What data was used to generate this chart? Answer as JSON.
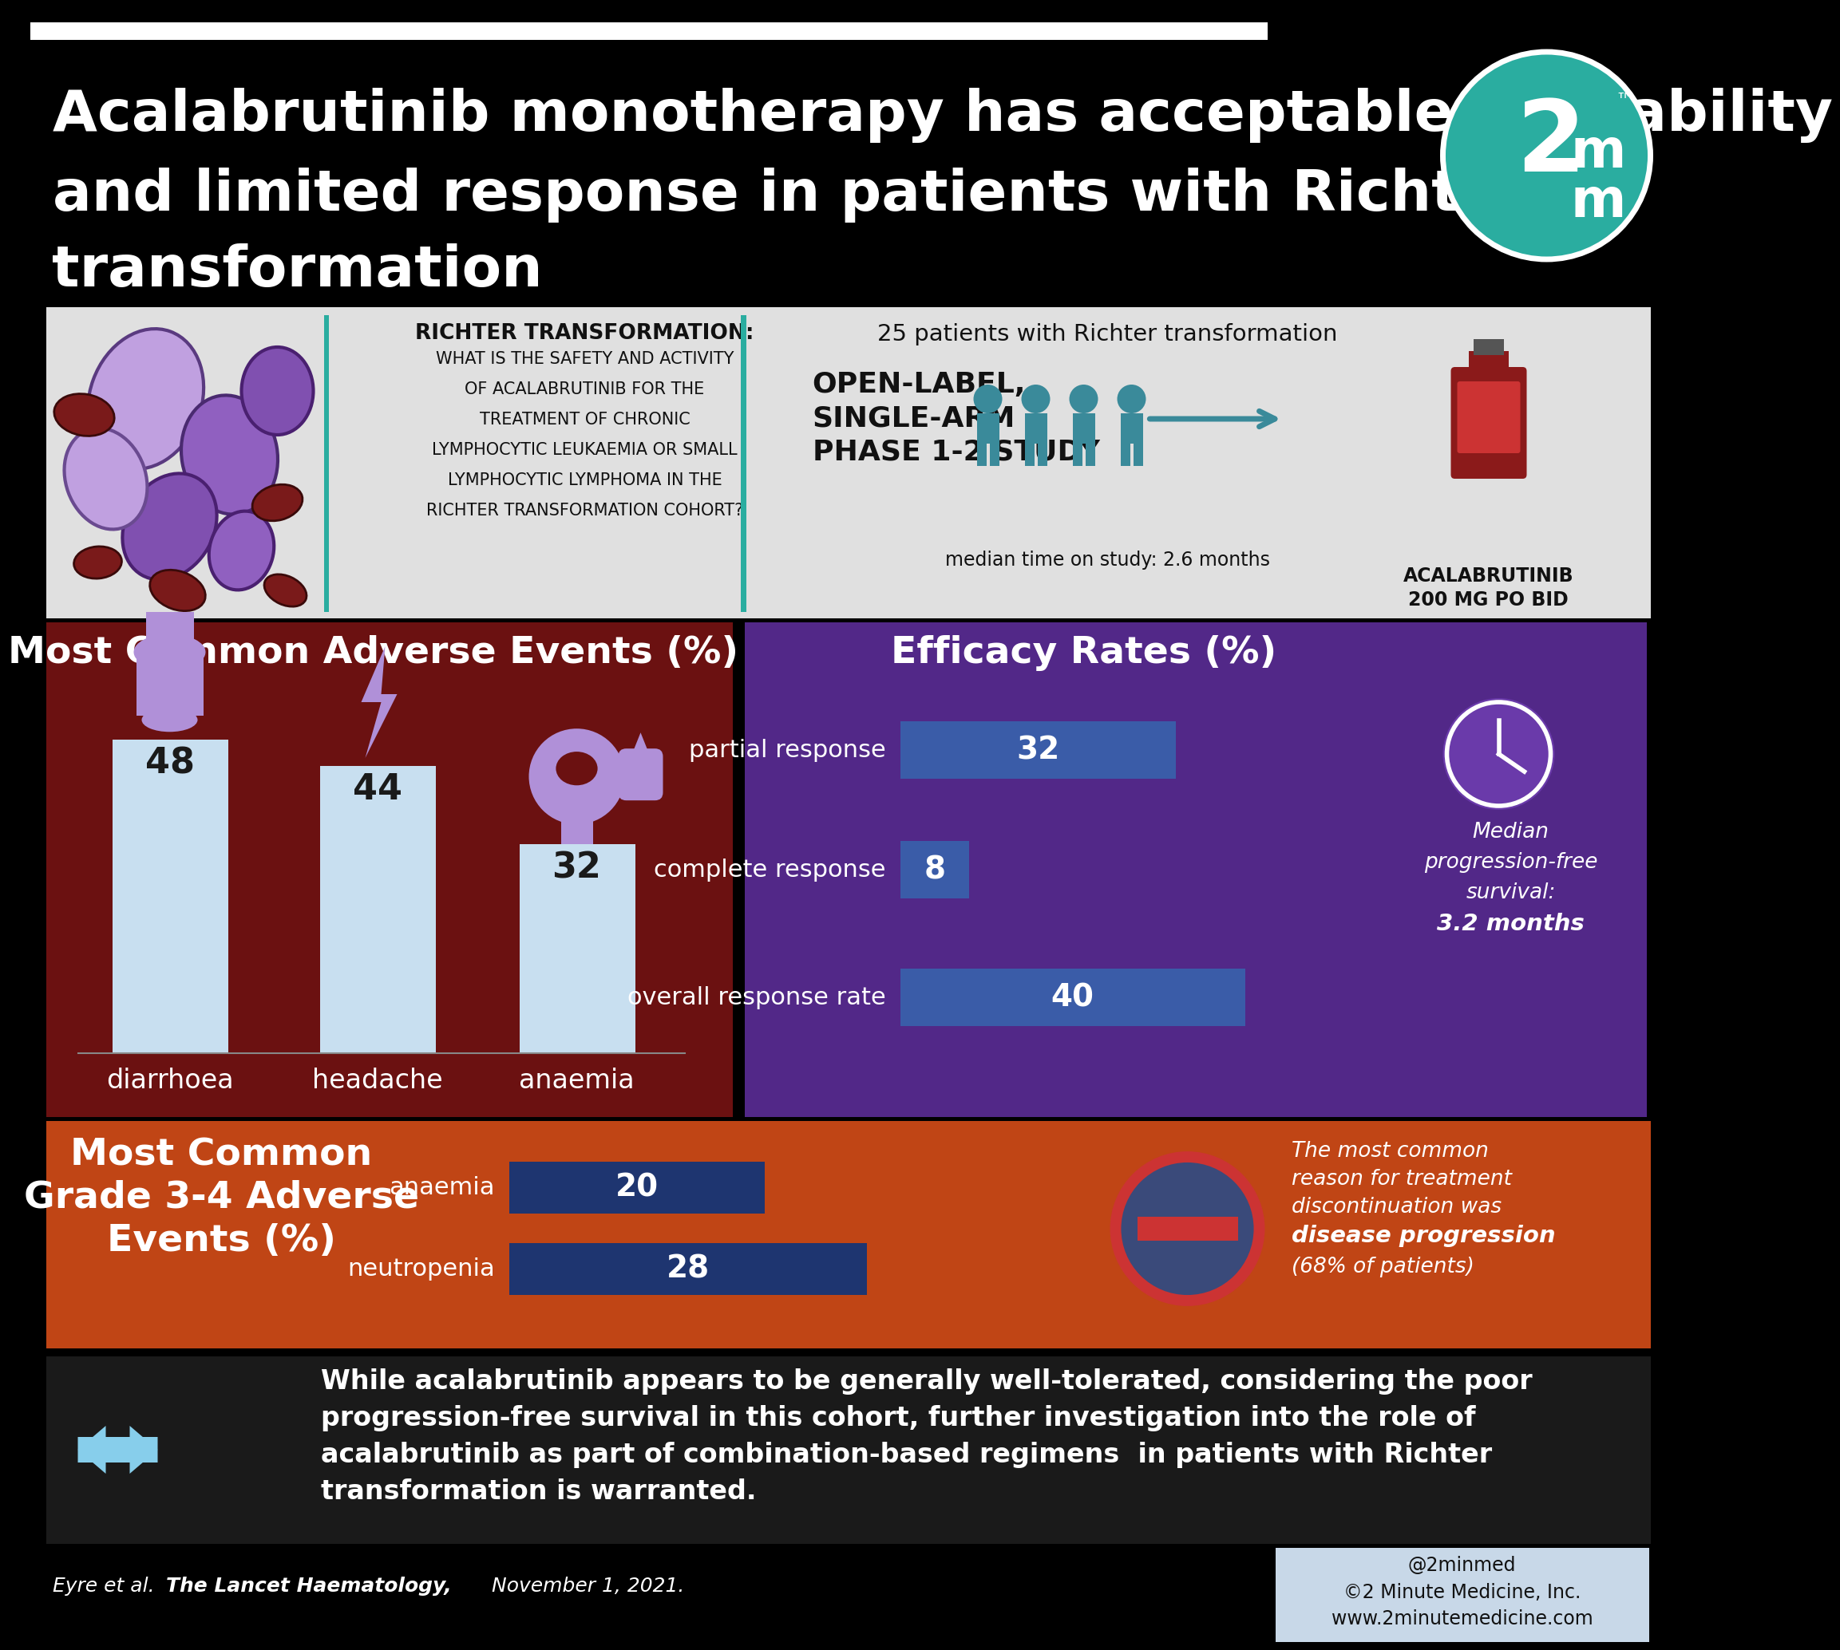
{
  "title_line1": "Acalabrutinib monotherapy has acceptable tolerability",
  "title_line2": "and limited response in patients with Richter",
  "title_line3": "transformation",
  "title_bg": "#000000",
  "title_color": "#ffffff",
  "header_bg": "#e0e0e0",
  "richter_text_title": "RICHTER TRANSFORMATION:",
  "richter_text_body": "WHAT IS THE SAFETY AND ACTIVITY\nOF ACALABRUTINIB FOR THE\nTREATMENT OF CHRONIC\nLYMPHOCYTIC LEUKAEMIA OR SMALL\nLYMPHOCYTIC LYMPHOMA IN THE\nRICHTER TRANSFORMATION COHORT?",
  "patients_text": "25 patients with Richter transformation",
  "study_text": "OPEN-LABEL,\nSINGLE-ARM\nPHASE 1-2 STUDY",
  "median_text": "median time on study: 2.6 months",
  "drug_text": "ACALABRUTINIB\n200 MG PO BID",
  "adverse_bg": "#6B1111",
  "adverse_title": "Most Common Adverse Events (%)",
  "adverse_categories": [
    "diarrhoea",
    "headache",
    "anaemia"
  ],
  "adverse_values": [
    48,
    44,
    32
  ],
  "adverse_bar_color": "#c8dff0",
  "efficacy_bg": "#522888",
  "efficacy_title": "Efficacy Rates (%)",
  "efficacy_categories": [
    "partial response",
    "complete response",
    "overall response rate"
  ],
  "efficacy_values": [
    32,
    8,
    40
  ],
  "efficacy_bar_color": "#3a5ca8",
  "pfs_text_line1": "Median",
  "pfs_text_line2": "progression-free",
  "pfs_text_line3": "survival:",
  "pfs_text_line4": "3.2 months",
  "grade_bg": "#c04515",
  "grade_title": "Most Common\nGrade 3-4 Adverse\nEvents (%)",
  "grade_categories": [
    "anaemia",
    "neutropenia"
  ],
  "grade_values": [
    20,
    28
  ],
  "grade_bar_color": "#1e3570",
  "discontinuation_text1": "The most common",
  "discontinuation_text2": "reason for treatment",
  "discontinuation_text3": "discontinuation was",
  "discontinuation_text4": "disease progression",
  "discontinuation_text5": "(68% of patients)",
  "conclusion_bg": "#1a1a1a",
  "conclusion_text": "While acalabrutinib appears to be generally well-tolerated, considering the poor\nprogression-free survival in this cohort, further investigation into the role of\nacalabrutinib as part of combination-based regimens  in patients with Richter\ntransformation is warranted.",
  "footer_left_text": "Eyre et al. ",
  "footer_lancet": "The Lancet Haematology,",
  "footer_date": " November 1, 2021.",
  "footer_right": "@2minmed\n©2 Minute Medicine, Inc.\nwww.2minutemedicine.com",
  "logo_bg": "#2aada0",
  "arrow_color": "#87ceeb",
  "person_color": "#3a8a9a",
  "icon_color": "#b090d8",
  "white_bar_color": "#ffffff",
  "teal_divider": "#2aada0"
}
